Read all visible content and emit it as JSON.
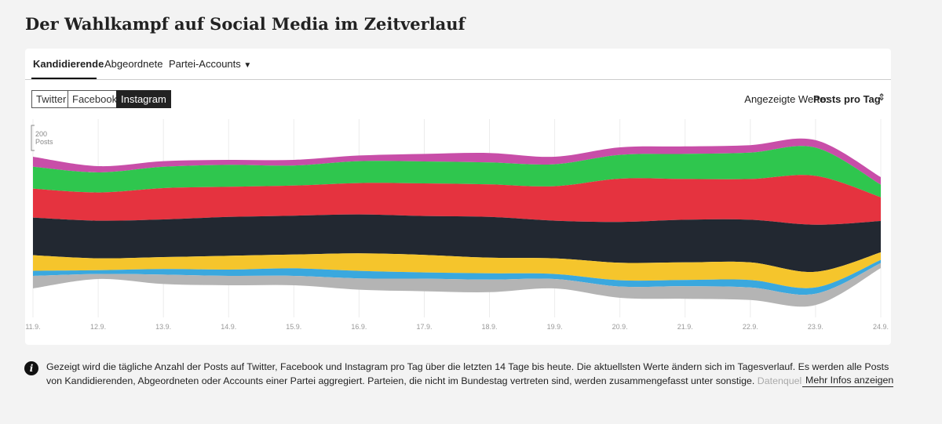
{
  "page": {
    "title": "Der Wahlkampf auf Social Media im Zeitverlauf",
    "tabs": [
      "Kandidierende",
      "Abgeordnete",
      "Partei-Accounts"
    ],
    "platforms": [
      "Twitter",
      "Facebook",
      "Instagram"
    ],
    "metric_label": "Angezeigte Werte:",
    "metric_value": "Posts pro Tag",
    "note": "Gezeigt wird die tägliche Anzahl der Posts auf Twitter, Facebook und Instagram pro Tag über die letzten 14 Tage bis heute. Die aktuellsten Werte ändern sich im Tagesverlauf. Es werden alle Posts von Kandidierenden, Abgeordneten oder Accounts einer Partei aggregiert. Parteien, die nicht im Bundestag vertreten sind, werden zusammengefasst unter sonstige.",
    "source": "Datenquelle: Crow",
    "more": "Mehr Infos anzeigen"
  },
  "chart_data": {
    "type": "streamgraph",
    "scale_value": 200,
    "scale_unit": "Posts",
    "categories": [
      "11.9.",
      "12.9.",
      "13.9.",
      "14.9.",
      "15.9.",
      "16.9.",
      "17.9.",
      "18.9.",
      "19.9.",
      "20.9.",
      "21.9.",
      "22.9.",
      "23.9.",
      "24.9."
    ],
    "grid": true,
    "series": [
      {
        "color": "#c84ea8",
        "values": [
          80,
          50,
          45,
          40,
          45,
          45,
          60,
          75,
          60,
          60,
          60,
          60,
          60,
          60
        ]
      },
      {
        "color": "#2fc64e",
        "values": [
          175,
          160,
          170,
          175,
          160,
          175,
          175,
          175,
          175,
          190,
          200,
          210,
          225,
          100
        ]
      },
      {
        "color": "#e5333f",
        "values": [
          230,
          225,
          250,
          240,
          240,
          250,
          260,
          260,
          275,
          345,
          325,
          325,
          390,
          190
        ]
      },
      {
        "color": "#222831",
        "values": [
          300,
          300,
          300,
          310,
          310,
          310,
          310,
          325,
          300,
          325,
          340,
          340,
          375,
          250
        ]
      },
      {
        "color": "#f5c52c",
        "values": [
          125,
          95,
          95,
          110,
          110,
          140,
          140,
          125,
          125,
          140,
          140,
          140,
          125,
          60
        ]
      },
      {
        "color": "#3aa8de",
        "values": [
          40,
          30,
          45,
          50,
          60,
          60,
          50,
          50,
          40,
          50,
          50,
          60,
          50,
          25
        ]
      },
      {
        "color": "#b4b4b4",
        "values": [
          100,
          40,
          75,
          75,
          75,
          90,
          100,
          100,
          75,
          90,
          100,
          100,
          90,
          40
        ]
      }
    ]
  }
}
